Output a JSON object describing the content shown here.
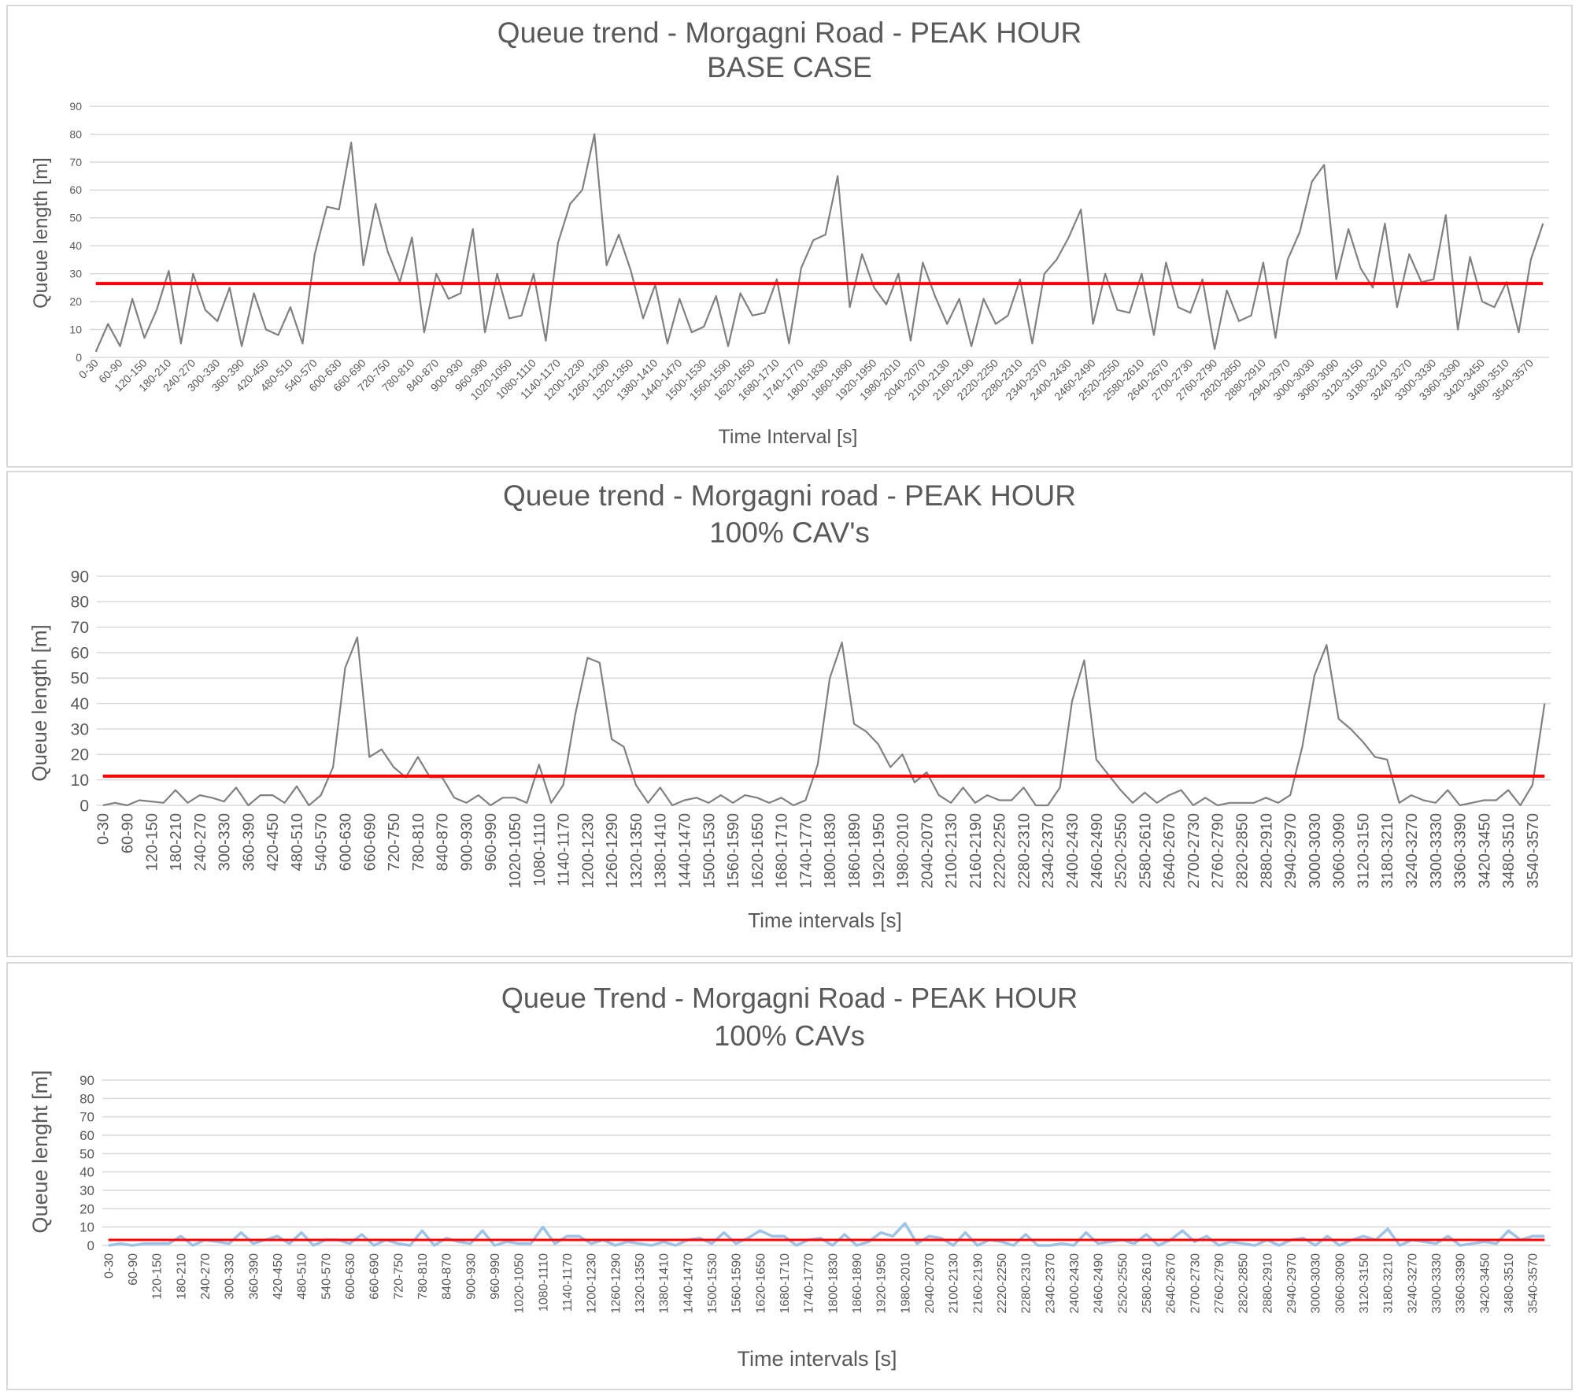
{
  "charts": [
    {
      "type": "line",
      "title_lines": [
        "Queue trend - Morgagni Road - PEAK HOUR",
        "BASE CASE"
      ],
      "xlabel": "Time Interval  [s]",
      "ylabel": "Queue length [m]",
      "ylim": [
        0,
        90
      ],
      "yticks": [
        0,
        10,
        20,
        30,
        40,
        50,
        60,
        70,
        80,
        90
      ],
      "grid": true,
      "colors": {
        "series": "#808080",
        "average": "#ff0000",
        "grid": "#d9d9d9",
        "text": "#595959"
      },
      "series_values": [
        2,
        12,
        4,
        21,
        7,
        17,
        31,
        5,
        30,
        17,
        13,
        25,
        4,
        23,
        10,
        8,
        18,
        5,
        37,
        54,
        53,
        77,
        33,
        55,
        38,
        27,
        43,
        9,
        30,
        21,
        23,
        46,
        9,
        30,
        14,
        15,
        30,
        6,
        41,
        55,
        60,
        80,
        33,
        44,
        31,
        14,
        26,
        5,
        21,
        9,
        11,
        22,
        4,
        23,
        15,
        16,
        28,
        5,
        32,
        42,
        44,
        65,
        18,
        37,
        25,
        19,
        30,
        6,
        34,
        22,
        12,
        21,
        4,
        21,
        12,
        15,
        28,
        5,
        30,
        35,
        43,
        53,
        12,
        30,
        17,
        16,
        30,
        8,
        34,
        18,
        16,
        28,
        3,
        24,
        13,
        15,
        34,
        7,
        35,
        45,
        63,
        69,
        28,
        46,
        32,
        25,
        48,
        18,
        37,
        27,
        28,
        51,
        10,
        36,
        20,
        18,
        27,
        9,
        35,
        48
      ],
      "average": 26.5
    },
    {
      "type": "line",
      "title_lines": [
        "Queue trend - Morgagni road - PEAK HOUR",
        "100% CAV's"
      ],
      "xlabel": "Time intervals [s]",
      "ylabel": "Queue length [m]",
      "ylim": [
        0,
        90
      ],
      "yticks": [
        0,
        10,
        20,
        30,
        40,
        50,
        60,
        70,
        80,
        90
      ],
      "grid": true,
      "colors": {
        "series": "#808080",
        "average": "#ff0000",
        "grid": "#d9d9d9",
        "text": "#595959"
      },
      "series_values": [
        0,
        1,
        0,
        2,
        1.5,
        1,
        6,
        1,
        4,
        3,
        1.5,
        7,
        0,
        4,
        4,
        1,
        7.5,
        0,
        4,
        15,
        54,
        66,
        19,
        22,
        15,
        11,
        19,
        11,
        11,
        3,
        1,
        4,
        0,
        3,
        3,
        1,
        16,
        1,
        8,
        36,
        58,
        56,
        26,
        23,
        8,
        1,
        7,
        0,
        2,
        3,
        1,
        4,
        1,
        4,
        3,
        1,
        3,
        0,
        2,
        16,
        50,
        64,
        32,
        29,
        24,
        15,
        20,
        9,
        13,
        4,
        1,
        7,
        1,
        4,
        2,
        2,
        7,
        0,
        0,
        7,
        41,
        57,
        18,
        12,
        6,
        1,
        5,
        1,
        4,
        6,
        0,
        3,
        0,
        1,
        1,
        1,
        3,
        1,
        4,
        23,
        51,
        63,
        34,
        30,
        25,
        19,
        18,
        1,
        4,
        2,
        1,
        6,
        0,
        1,
        2,
        2,
        6,
        0,
        8,
        40
      ],
      "average": 11.5
    },
    {
      "type": "line",
      "title_lines": [
        "Queue Trend - Morgagni Road - PEAK HOUR",
        "100% CAVs"
      ],
      "xlabel": "Time intervals [s]",
      "ylabel": "Queue lenght [m]",
      "ylim": [
        0,
        90
      ],
      "yticks": [
        0,
        10,
        20,
        30,
        40,
        50,
        60,
        70,
        80,
        90
      ],
      "grid": true,
      "colors": {
        "series": "#9dc3e6",
        "average": "#ff0000",
        "grid": "#d9d9d9",
        "text": "#595959"
      },
      "series_values": [
        0,
        1,
        0,
        1,
        1,
        1,
        5,
        0,
        3,
        2,
        1,
        7,
        1,
        3,
        5,
        1,
        7,
        0,
        3,
        3,
        1,
        6,
        0,
        3,
        1,
        0,
        8,
        0,
        4,
        2,
        1,
        8,
        0,
        2,
        1,
        1,
        10,
        1,
        5,
        5,
        1,
        3,
        0,
        2,
        1,
        0,
        2,
        0,
        3,
        4,
        1,
        7,
        1,
        4,
        8,
        5,
        5,
        0,
        3,
        4,
        0,
        6,
        0,
        2,
        7,
        5,
        12,
        1,
        5,
        4,
        0,
        7,
        0,
        3,
        2,
        0,
        6,
        0,
        0,
        1,
        0,
        7,
        1,
        2,
        3,
        1,
        6,
        0,
        3,
        8,
        2,
        5,
        0,
        2,
        1,
        0,
        3,
        0,
        3,
        4,
        0,
        5,
        0,
        3,
        5,
        3,
        9,
        0,
        3,
        2,
        1,
        5,
        0,
        1,
        2,
        1,
        8,
        3,
        5,
        5
      ],
      "average": 3
    }
  ]
}
